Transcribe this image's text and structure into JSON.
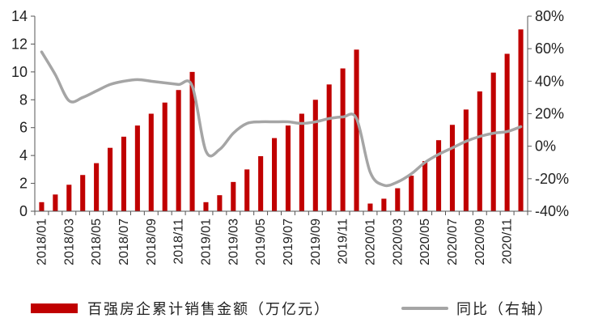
{
  "chart_data": {
    "type": "bar",
    "categories": [
      "2018/01",
      "2018/02",
      "2018/03",
      "2018/04",
      "2018/05",
      "2018/06",
      "2018/07",
      "2018/08",
      "2018/09",
      "2018/10",
      "2018/11",
      "2018/12",
      "2019/01",
      "2019/02",
      "2019/03",
      "2019/04",
      "2019/05",
      "2019/06",
      "2019/07",
      "2019/08",
      "2019/09",
      "2019/10",
      "2019/11",
      "2019/12",
      "2020/01",
      "2020/02",
      "2020/03",
      "2020/04",
      "2020/05",
      "2020/06",
      "2020/07",
      "2020/08",
      "2020/09",
      "2020/10",
      "2020/11",
      "2020/12"
    ],
    "x_tick_labels": [
      "2018/01",
      "2018/03",
      "2018/05",
      "2018/07",
      "2018/09",
      "2018/11",
      "2019/01",
      "2019/03",
      "2019/05",
      "2019/07",
      "2019/09",
      "2019/11",
      "2020/01",
      "2020/03",
      "2020/05",
      "2020/07",
      "2020/09",
      "2020/11"
    ],
    "series": [
      {
        "name": "百强房企累计销售金额（万亿元）",
        "type": "bar",
        "axis": "left",
        "color": "#C00000",
        "values": [
          0.65,
          1.2,
          1.9,
          2.6,
          3.45,
          4.55,
          5.35,
          6.15,
          7.0,
          7.8,
          8.7,
          10.0,
          0.65,
          1.15,
          2.1,
          3.0,
          3.95,
          5.25,
          6.15,
          7.0,
          8.0,
          9.1,
          10.25,
          11.6,
          0.55,
          0.9,
          1.65,
          2.55,
          3.6,
          5.1,
          6.2,
          7.3,
          8.6,
          9.95,
          11.3,
          13.05
        ]
      },
      {
        "name": "同比（右轴）",
        "type": "line",
        "axis": "right",
        "color": "#A5A5A5",
        "values": [
          58,
          44,
          28,
          30,
          34,
          38,
          40,
          41,
          40,
          39,
          38,
          37,
          -3,
          -2,
          8,
          14,
          15,
          15,
          15,
          14,
          15,
          17,
          18,
          17,
          -16,
          -24,
          -22,
          -17,
          -10,
          -5,
          -1,
          3,
          6,
          8,
          9,
          12
        ]
      }
    ],
    "ylim_left": [
      0,
      14
    ],
    "yticks_left": [
      0,
      2,
      4,
      6,
      8,
      10,
      12,
      14
    ],
    "ylim_right": [
      -40,
      80
    ],
    "yticks_right": [
      "-40%",
      "-20%",
      "0%",
      "20%",
      "40%",
      "60%",
      "80%"
    ],
    "yticks_right_values": [
      -40,
      -20,
      0,
      20,
      40,
      60,
      80
    ],
    "grid": false,
    "legend_position": "bottom"
  }
}
